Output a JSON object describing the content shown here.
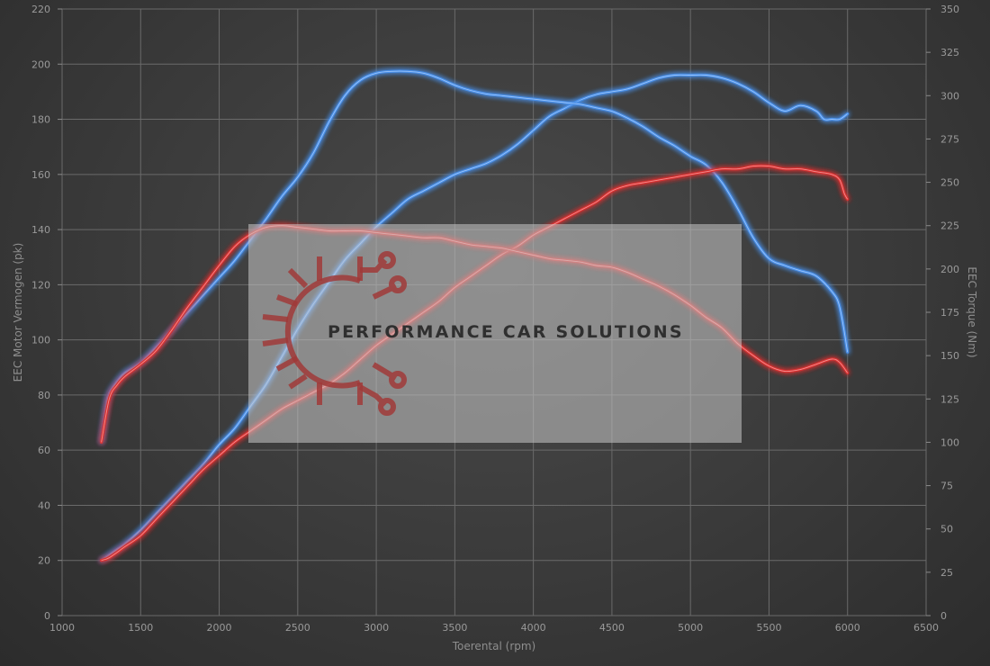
{
  "chart_data": {
    "type": "line",
    "xlabel": "Toerental (rpm)",
    "ylabel_left": "EEC Motor Vermogen (pk)",
    "ylabel_right": "EEC Torque (Nm)",
    "xlim": [
      1000,
      6500
    ],
    "xticks": [
      1000,
      1500,
      2000,
      2500,
      3000,
      3500,
      4000,
      4500,
      5000,
      5500,
      6000,
      6500
    ],
    "ylim_left": [
      0,
      220
    ],
    "yticks_left": [
      0,
      20,
      40,
      60,
      80,
      100,
      120,
      140,
      160,
      180,
      200,
      220
    ],
    "ylim_right": [
      0,
      350
    ],
    "yticks_right": [
      0,
      25,
      50,
      75,
      100,
      125,
      150,
      175,
      200,
      225,
      250,
      275,
      300,
      325,
      350
    ],
    "grid": true,
    "series": [
      {
        "axis": "left",
        "color": "#4a8fe8",
        "x": [
          1250,
          1300,
          1350,
          1400,
          1500,
          1600,
          1700,
          1800,
          1900,
          2000,
          2100,
          2200,
          2300,
          2400,
          2500,
          2600,
          2700,
          2800,
          2900,
          3000,
          3100,
          3200,
          3300,
          3400,
          3500,
          3600,
          3700,
          3800,
          3900,
          4000,
          4100,
          4200,
          4300,
          4400,
          4500,
          4600,
          4700,
          4800,
          4900,
          5000,
          5100,
          5200,
          5300,
          5400,
          5500,
          5600,
          5700,
          5800,
          5850,
          5900,
          5950,
          6000
        ],
        "y": [
          20,
          22,
          24,
          26,
          31,
          37,
          43,
          49,
          55,
          62,
          68,
          76,
          84,
          94,
          104,
          113,
          121,
          129,
          135,
          141,
          146,
          151,
          154,
          157,
          160,
          162,
          164,
          167,
          171,
          176,
          181,
          184,
          187,
          189,
          190,
          191,
          193,
          195,
          196,
          196,
          196,
          195,
          193,
          190,
          186,
          183,
          185,
          183,
          180,
          180,
          180,
          182
        ]
      },
      {
        "axis": "right",
        "color": "#4a8fe8",
        "x": [
          1250,
          1280,
          1300,
          1350,
          1400,
          1500,
          1600,
          1700,
          1800,
          1900,
          2000,
          2100,
          2200,
          2300,
          2400,
          2500,
          2600,
          2700,
          2800,
          2900,
          3000,
          3100,
          3200,
          3300,
          3400,
          3500,
          3600,
          3700,
          3800,
          3900,
          4000,
          4100,
          4200,
          4300,
          4400,
          4500,
          4600,
          4700,
          4800,
          4900,
          5000,
          5100,
          5200,
          5300,
          5400,
          5500,
          5600,
          5700,
          5800,
          5900,
          5950,
          6000
        ],
        "y": [
          100,
          120,
          128,
          135,
          140,
          146,
          155,
          165,
          175,
          185,
          195,
          205,
          217,
          229,
          242,
          253,
          267,
          285,
          300,
          309,
          313,
          314,
          314,
          313,
          310,
          306,
          303,
          301,
          300,
          299,
          298,
          297,
          296,
          295,
          293,
          291,
          287,
          282,
          276,
          271,
          265,
          260,
          250,
          235,
          218,
          206,
          202,
          199,
          196,
          187,
          178,
          152
        ]
      },
      {
        "axis": "left",
        "color": "#d83030",
        "x": [
          1250,
          1300,
          1400,
          1500,
          1600,
          1700,
          1800,
          1900,
          2000,
          2100,
          2200,
          2300,
          2400,
          2500,
          2600,
          2700,
          2800,
          2900,
          3000,
          3100,
          3200,
          3300,
          3400,
          3500,
          3600,
          3700,
          3800,
          3900,
          4000,
          4100,
          4200,
          4300,
          4400,
          4500,
          4600,
          4700,
          4800,
          4900,
          5000,
          5100,
          5200,
          5300,
          5400,
          5500,
          5600,
          5700,
          5800,
          5900,
          5950,
          5980,
          6000
        ],
        "y": [
          20,
          21,
          25,
          29,
          35,
          41,
          47,
          53,
          58,
          63,
          67,
          71,
          75,
          78,
          81,
          84,
          88,
          93,
          98,
          102,
          106,
          110,
          114,
          119,
          123,
          127,
          131,
          134,
          138,
          141,
          144,
          147,
          150,
          154,
          156,
          157,
          158,
          159,
          160,
          161,
          162,
          162,
          163,
          163,
          162,
          162,
          161,
          160,
          158,
          153,
          151
        ]
      },
      {
        "axis": "right",
        "color": "#d83030",
        "x": [
          1250,
          1300,
          1350,
          1400,
          1500,
          1600,
          1700,
          1800,
          1900,
          2000,
          2100,
          2200,
          2300,
          2400,
          2500,
          2600,
          2700,
          2800,
          2900,
          3000,
          3100,
          3200,
          3300,
          3400,
          3500,
          3600,
          3700,
          3800,
          3900,
          4000,
          4100,
          4200,
          4300,
          4400,
          4500,
          4600,
          4700,
          4800,
          4900,
          5000,
          5100,
          5200,
          5300,
          5400,
          5500,
          5600,
          5700,
          5800,
          5900,
          5950,
          6000
        ],
        "y": [
          100,
          125,
          133,
          138,
          145,
          153,
          165,
          178,
          190,
          202,
          213,
          220,
          224,
          225,
          224,
          223,
          222,
          222,
          222,
          221,
          220,
          219,
          218,
          218,
          216,
          214,
          213,
          212,
          210,
          208,
          206,
          205,
          204,
          202,
          201,
          198,
          194,
          190,
          185,
          179,
          172,
          166,
          157,
          150,
          144,
          141,
          142,
          145,
          148,
          146,
          140
        ]
      }
    ]
  },
  "watermark": {
    "text": "PERFORMANCE CAR SOLUTIONS",
    "logo": "gear-circuit-logo"
  }
}
